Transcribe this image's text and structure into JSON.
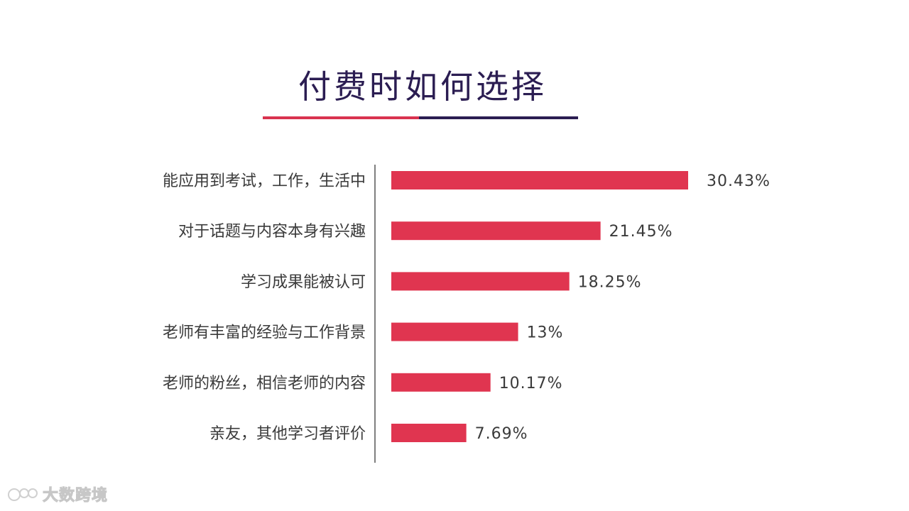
{
  "title": "付费时如何选择",
  "colors": {
    "bar": "#e03550",
    "title": "#2b1d52",
    "accent": "#d9334f",
    "axis": "#555555",
    "text": "#3a3a3a"
  },
  "watermark": {
    "text": "大数跨境",
    "icon": "logo-icon"
  },
  "chart_data": {
    "type": "bar",
    "orientation": "horizontal",
    "title": "付费时如何选择",
    "categories": [
      "能应用到考试，工作，生活中",
      "对于话题与内容本身有兴趣",
      "学习成果能被认可",
      "老师有丰富的经验与工作背景",
      "老师的粉丝，相信老师的内容",
      "亲友，其他学习者评价"
    ],
    "values": [
      30.43,
      21.45,
      18.25,
      13,
      10.17,
      7.69
    ],
    "data_labels": [
      "30.43%",
      "21.45%",
      "18.25%",
      "13%",
      "10.17%",
      "7.69%"
    ],
    "xlim": [
      0,
      30.43
    ],
    "grid": false,
    "legend": "none"
  }
}
